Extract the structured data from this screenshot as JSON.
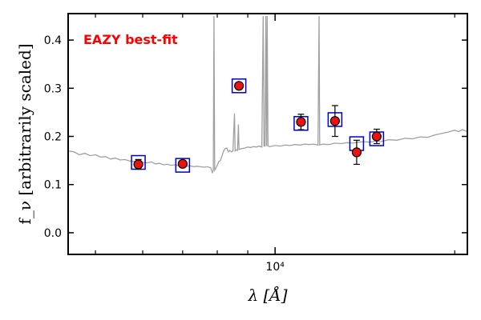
{
  "chart_data": {
    "type": "scatter",
    "annotation": "EAZY best-fit",
    "xlabel": "λ [Å]",
    "ylabel": "f_ν [arbitrarily scaled]",
    "xscale": "log",
    "xlim": [
      4500,
      21000
    ],
    "ylim": [
      -0.045,
      0.455
    ],
    "yticks": [
      0.0,
      0.1,
      0.2,
      0.3,
      0.4
    ],
    "ytick_labels": [
      "0.0",
      "0.1",
      "0.2",
      "0.3",
      "0.4"
    ],
    "xtick_major": [
      10000
    ],
    "xtick_major_labels": [
      "10⁴"
    ],
    "xtick_minor": [
      5000,
      6000,
      7000,
      8000,
      9000,
      20000
    ],
    "colors": {
      "spectrum": "#a0a0a0",
      "model_box": "#0000cc",
      "point": "#ee1111",
      "annotation": "#ff0000"
    },
    "observed": [
      {
        "x": 5900,
        "y": 0.142,
        "err": 0.01
      },
      {
        "x": 7000,
        "y": 0.143,
        "err": 0.006
      },
      {
        "x": 8700,
        "y": 0.305,
        "err": 0.006
      },
      {
        "x": 11050,
        "y": 0.23,
        "err": 0.016
      },
      {
        "x": 12600,
        "y": 0.232,
        "err": 0.032
      },
      {
        "x": 13700,
        "y": 0.167,
        "err": 0.025
      },
      {
        "x": 14800,
        "y": 0.2,
        "err": 0.015
      }
    ],
    "model_photometry": [
      {
        "x": 5900,
        "y": 0.146
      },
      {
        "x": 7000,
        "y": 0.14
      },
      {
        "x": 8700,
        "y": 0.305
      },
      {
        "x": 11050,
        "y": 0.227
      },
      {
        "x": 12600,
        "y": 0.235
      },
      {
        "x": 13700,
        "y": 0.185
      },
      {
        "x": 14800,
        "y": 0.195
      }
    ],
    "spectrum": [
      [
        4500,
        0.17
      ],
      [
        4600,
        0.168
      ],
      [
        4700,
        0.162
      ],
      [
        4800,
        0.165
      ],
      [
        4900,
        0.16
      ],
      [
        5000,
        0.162
      ],
      [
        5100,
        0.157
      ],
      [
        5200,
        0.158
      ],
      [
        5300,
        0.153
      ],
      [
        5400,
        0.155
      ],
      [
        5500,
        0.151
      ],
      [
        5600,
        0.152
      ],
      [
        5700,
        0.149
      ],
      [
        5800,
        0.148
      ],
      [
        5900,
        0.148
      ],
      [
        6000,
        0.146
      ],
      [
        6100,
        0.145
      ],
      [
        6200,
        0.147
      ],
      [
        6300,
        0.143
      ],
      [
        6400,
        0.144
      ],
      [
        6500,
        0.141
      ],
      [
        6600,
        0.142
      ],
      [
        6700,
        0.14
      ],
      [
        6800,
        0.141
      ],
      [
        6900,
        0.139
      ],
      [
        7000,
        0.14
      ],
      [
        7100,
        0.138
      ],
      [
        7200,
        0.139
      ],
      [
        7300,
        0.137
      ],
      [
        7400,
        0.138
      ],
      [
        7500,
        0.137
      ],
      [
        7600,
        0.136
      ],
      [
        7700,
        0.137
      ],
      [
        7800,
        0.135
      ],
      [
        7850,
        0.125
      ],
      [
        7880,
        0.129
      ],
      [
        7900,
        0.45
      ],
      [
        7920,
        0.13
      ],
      [
        7950,
        0.133
      ],
      [
        8000,
        0.14
      ],
      [
        8050,
        0.148
      ],
      [
        8100,
        0.15
      ],
      [
        8150,
        0.16
      ],
      [
        8200,
        0.17
      ],
      [
        8250,
        0.175
      ],
      [
        8300,
        0.176
      ],
      [
        8350,
        0.168
      ],
      [
        8400,
        0.171
      ],
      [
        8450,
        0.168
      ],
      [
        8500,
        0.17
      ],
      [
        8550,
        0.248
      ],
      [
        8570,
        0.17
      ],
      [
        8600,
        0.172
      ],
      [
        8650,
        0.171
      ],
      [
        8680,
        0.225
      ],
      [
        8700,
        0.173
      ],
      [
        8800,
        0.175
      ],
      [
        8900,
        0.176
      ],
      [
        9000,
        0.178
      ],
      [
        9100,
        0.177
      ],
      [
        9200,
        0.179
      ],
      [
        9300,
        0.178
      ],
      [
        9400,
        0.18
      ],
      [
        9500,
        0.178
      ],
      [
        9550,
        0.45
      ],
      [
        9580,
        0.18
      ],
      [
        9620,
        0.18
      ],
      [
        9650,
        0.45
      ],
      [
        9680,
        0.18
      ],
      [
        9700,
        0.45
      ],
      [
        9730,
        0.18
      ],
      [
        9800,
        0.179
      ],
      [
        10000,
        0.181
      ],
      [
        10200,
        0.18
      ],
      [
        10400,
        0.182
      ],
      [
        10600,
        0.181
      ],
      [
        10800,
        0.183
      ],
      [
        11000,
        0.182
      ],
      [
        11200,
        0.184
      ],
      [
        11400,
        0.183
      ],
      [
        11600,
        0.184
      ],
      [
        11800,
        0.182
      ],
      [
        11850,
        0.45
      ],
      [
        11880,
        0.182
      ],
      [
        12000,
        0.184
      ],
      [
        12300,
        0.183
      ],
      [
        12600,
        0.186
      ],
      [
        12900,
        0.185
      ],
      [
        13200,
        0.187
      ],
      [
        13500,
        0.186
      ],
      [
        13800,
        0.188
      ],
      [
        14100,
        0.189
      ],
      [
        14400,
        0.188
      ],
      [
        14700,
        0.19
      ],
      [
        15000,
        0.189
      ],
      [
        15500,
        0.193
      ],
      [
        16000,
        0.192
      ],
      [
        16500,
        0.196
      ],
      [
        17000,
        0.195
      ],
      [
        17500,
        0.199
      ],
      [
        18000,
        0.198
      ],
      [
        18500,
        0.203
      ],
      [
        19000,
        0.206
      ],
      [
        19500,
        0.209
      ],
      [
        20000,
        0.213
      ],
      [
        20300,
        0.21
      ],
      [
        20600,
        0.214
      ],
      [
        21000,
        0.21
      ]
    ]
  }
}
